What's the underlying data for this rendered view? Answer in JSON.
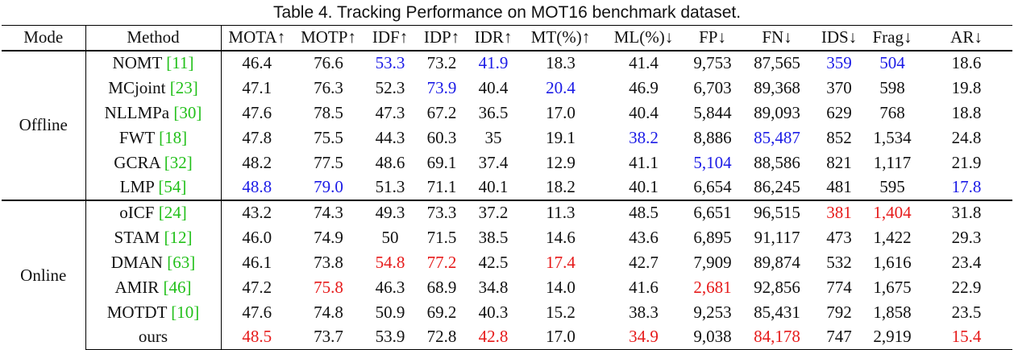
{
  "caption": "Table 4. Tracking Performance on MOT16 benchmark dataset.",
  "headers": [
    "Mode",
    "Method",
    "MOTA↑",
    "MOTP↑",
    "IDF↑",
    "IDP↑",
    "IDR↑",
    "MT(%)↑",
    "ML(%)↓",
    "FP↓",
    "FN↓",
    "IDS↓",
    "Frag↓",
    "AR↓"
  ],
  "colors": {
    "best_offline": "#1a1ae6",
    "best_online": "#e61a1a",
    "citation": "#22c01a"
  },
  "groups": [
    {
      "mode": "Offline",
      "rows": [
        {
          "name": "NOMT",
          "cite": "11",
          "vals": [
            "46.4",
            "76.6",
            "53.3",
            "73.2",
            "41.9",
            "18.3",
            "41.4",
            "9,753",
            "87,565",
            "359",
            "504",
            "18.6"
          ],
          "hl": [
            null,
            null,
            "b",
            null,
            "b",
            null,
            null,
            null,
            null,
            "b",
            "b",
            null
          ]
        },
        {
          "name": "MCjoint",
          "cite": "23",
          "vals": [
            "47.1",
            "76.3",
            "52.3",
            "73.9",
            "40.4",
            "20.4",
            "46.9",
            "6,703",
            "89,368",
            "370",
            "598",
            "19.8"
          ],
          "hl": [
            null,
            null,
            null,
            "b",
            null,
            "b",
            null,
            null,
            null,
            null,
            null,
            null
          ]
        },
        {
          "name": "NLLMPa",
          "cite": "30",
          "vals": [
            "47.6",
            "78.5",
            "47.3",
            "67.2",
            "36.5",
            "17.0",
            "40.4",
            "5,844",
            "89,093",
            "629",
            "768",
            "18.8"
          ],
          "hl": [
            null,
            null,
            null,
            null,
            null,
            null,
            null,
            null,
            null,
            null,
            null,
            null
          ]
        },
        {
          "name": "FWT",
          "cite": "18",
          "vals": [
            "47.8",
            "75.5",
            "44.3",
            "60.3",
            "35",
            "19.1",
            "38.2",
            "8,886",
            "85,487",
            "852",
            "1,534",
            "24.8"
          ],
          "hl": [
            null,
            null,
            null,
            null,
            null,
            null,
            "b",
            null,
            "b",
            null,
            null,
            null
          ]
        },
        {
          "name": "GCRA",
          "cite": "32",
          "vals": [
            "48.2",
            "77.5",
            "48.6",
            "69.1",
            "37.4",
            "12.9",
            "41.1",
            "5,104",
            "88,586",
            "821",
            "1,117",
            "21.9"
          ],
          "hl": [
            null,
            null,
            null,
            null,
            null,
            null,
            null,
            "b",
            null,
            null,
            null,
            null
          ]
        },
        {
          "name": "LMP",
          "cite": "54",
          "vals": [
            "48.8",
            "79.0",
            "51.3",
            "71.1",
            "40.1",
            "18.2",
            "40.1",
            "6,654",
            "86,245",
            "481",
            "595",
            "17.8"
          ],
          "hl": [
            "b",
            "b",
            null,
            null,
            null,
            null,
            null,
            null,
            null,
            null,
            null,
            "b"
          ]
        }
      ]
    },
    {
      "mode": "Online",
      "rows": [
        {
          "name": "oICF",
          "cite": "24",
          "vals": [
            "43.2",
            "74.3",
            "49.3",
            "73.3",
            "37.2",
            "11.3",
            "48.5",
            "6,651",
            "96,515",
            "381",
            "1,404",
            "31.8"
          ],
          "hl": [
            null,
            null,
            null,
            null,
            null,
            null,
            null,
            null,
            null,
            "r",
            "r",
            null
          ]
        },
        {
          "name": "STAM",
          "cite": "12",
          "vals": [
            "46.0",
            "74.9",
            "50",
            "71.5",
            "38.5",
            "14.6",
            "43.6",
            "6,895",
            "91,117",
            "473",
            "1,422",
            "29.3"
          ],
          "hl": [
            null,
            null,
            null,
            null,
            null,
            null,
            null,
            null,
            null,
            null,
            null,
            null
          ]
        },
        {
          "name": "DMAN",
          "cite": "63",
          "vals": [
            "46.1",
            "73.8",
            "54.8",
            "77.2",
            "42.5",
            "17.4",
            "42.7",
            "7,909",
            "89,874",
            "532",
            "1,616",
            "23.4"
          ],
          "hl": [
            null,
            null,
            "r",
            "r",
            null,
            "r",
            null,
            null,
            null,
            null,
            null,
            null
          ]
        },
        {
          "name": "AMIR",
          "cite": "46",
          "vals": [
            "47.2",
            "75.8",
            "46.3",
            "68.9",
            "34.8",
            "14.0",
            "41.6",
            "2,681",
            "92,856",
            "774",
            "1,675",
            "22.9"
          ],
          "hl": [
            null,
            "r",
            null,
            null,
            null,
            null,
            null,
            "r",
            null,
            null,
            null,
            null
          ]
        },
        {
          "name": "MOTDT",
          "cite": "10",
          "vals": [
            "47.6",
            "74.8",
            "50.9",
            "69.2",
            "40.3",
            "15.2",
            "38.3",
            "9,253",
            "85,431",
            "792",
            "1,858",
            "23.5"
          ],
          "hl": [
            null,
            null,
            null,
            null,
            null,
            null,
            null,
            null,
            null,
            null,
            null,
            null
          ]
        },
        {
          "name": "ours",
          "cite": "",
          "vals": [
            "48.5",
            "73.7",
            "53.9",
            "72.8",
            "42.8",
            "17.0",
            "34.9",
            "9,038",
            "84,178",
            "747",
            "2,919",
            "15.4"
          ],
          "hl": [
            "r",
            null,
            null,
            null,
            "r",
            null,
            "r",
            null,
            "r",
            null,
            null,
            "r"
          ]
        }
      ]
    }
  ]
}
